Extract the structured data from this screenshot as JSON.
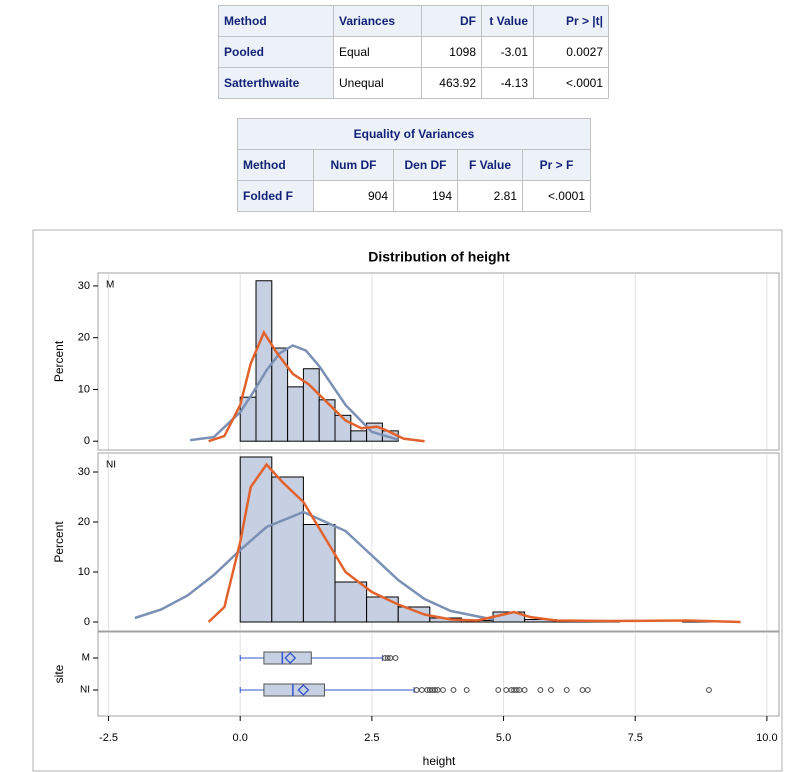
{
  "tables": [
    {
      "header": [
        "Method",
        "Variances",
        "DF",
        "t Value",
        "Pr > |t|"
      ],
      "rows": [
        [
          "Pooled",
          "Equal",
          "1098",
          "-3.01",
          "0.0027"
        ],
        [
          "Satterthwaite",
          "Unequal",
          "463.92",
          "-4.13",
          "<.0001"
        ]
      ]
    },
    {
      "title": "Equality of Variances",
      "header": [
        "Method",
        "Num DF",
        "Den DF",
        "F Value",
        "Pr > F"
      ],
      "rows": [
        [
          "Folded F",
          "904",
          "194",
          "2.81",
          "<.0001"
        ]
      ]
    }
  ],
  "chart_data": {
    "type": "histogram",
    "title": "Distribution of height",
    "xlabel": "height",
    "ylabel": "Percent",
    "xlim": [
      -2.7,
      10.23
    ],
    "xticks": [
      {
        "value": -2.5,
        "label": "-2.5"
      },
      {
        "value": 0,
        "label": "0.0"
      },
      2.5,
      {
        "value": 5,
        "label": "5.0"
      },
      7.5,
      {
        "value": 10,
        "label": "10.0"
      }
    ],
    "grid": true,
    "bar_color": "#c6d0e2",
    "panels": [
      {
        "label": "M",
        "ylim": [
          -1.7,
          32.5
        ],
        "yticks": [
          0,
          10,
          20,
          30
        ],
        "bins": [
          0,
          0.3,
          0.6,
          0.9,
          1.2,
          1.5,
          1.8,
          2.1,
          2.4,
          2.7,
          3.0
        ],
        "values": [
          8.5,
          31,
          18,
          10.5,
          14,
          8,
          5,
          2,
          3.5,
          2
        ],
        "curves": [
          {
            "color": "#7b90b5",
            "x": [
              -0.95,
              -0.5,
              0,
              0.25,
              0.5,
              0.75,
              1.0,
              1.25,
              1.5,
              2.0,
              2.5,
              3.0
            ],
            "values": [
              0.2,
              0.8,
              5.6,
              9.5,
              13.7,
              17,
              18.5,
              17.5,
              14.5,
              7,
              1.8,
              0.3
            ]
          },
          {
            "color": "#e2622e",
            "x": [
              -0.6,
              -0.3,
              0,
              0.2,
              0.45,
              0.7,
              1.0,
              1.3,
              1.6,
              2.0,
              2.3,
              2.6,
              2.8,
              3.1,
              3.5
            ],
            "values": [
              0,
              1,
              7,
              15,
              21,
              17,
              13,
              11,
              8,
              4,
              2.5,
              2.8,
              2,
              0.5,
              0
            ]
          }
        ]
      },
      {
        "label": "NI",
        "ylim": [
          -1.8,
          33.8
        ],
        "yticks": [
          0,
          10,
          20,
          30
        ],
        "bins": [
          0,
          0.6,
          1.2,
          1.8,
          2.4,
          3.0,
          3.6,
          4.2,
          4.8,
          5.4,
          6.0,
          6.6,
          7.2,
          7.8,
          8.4,
          9.0
        ],
        "values": [
          33,
          29,
          19.5,
          8,
          5,
          3,
          0.8,
          0.3,
          2,
          0.5,
          0.2,
          0.1,
          0,
          0,
          0.1
        ],
        "curves": [
          {
            "color": "#7b90b5",
            "x": [
              -2.0,
              -1.5,
              -1.0,
              -0.5,
              0,
              0.5,
              1.2,
              2.0,
              2.5,
              3.0,
              3.5,
              4.0,
              4.8
            ],
            "values": [
              0.8,
              2.5,
              5.3,
              9.4,
              14.4,
              19,
              22,
              18.2,
              13.3,
              8.4,
              4.6,
              2.2,
              0.5
            ]
          },
          {
            "color": "#e2622e",
            "x": [
              -0.6,
              -0.3,
              0,
              0.2,
              0.5,
              0.8,
              1.2,
              1.6,
              2.0,
              2.5,
              3.0,
              3.5,
              4.0,
              4.5,
              5.0,
              5.2,
              5.5,
              6.0,
              7.0,
              8.5,
              9.5
            ],
            "values": [
              0,
              3,
              16,
              27,
              31.5,
              28,
              24,
              17,
              10,
              6,
              3.5,
              1.5,
              0.5,
              0.3,
              1.5,
              2,
              1,
              0.3,
              0.2,
              0.3,
              0
            ]
          }
        ]
      }
    ],
    "box": {
      "ylabel": "site",
      "categories": [
        "M",
        "NI"
      ],
      "boxes": [
        {
          "min": 0,
          "q1": 0.45,
          "median": 0.8,
          "q3": 1.35,
          "max": 2.7,
          "mean": 0.95,
          "outliers": [
            2.75,
            2.8,
            2.85,
            2.95
          ]
        },
        {
          "min": 0,
          "q1": 0.45,
          "median": 1.0,
          "q3": 1.6,
          "max": 3.3,
          "mean": 1.2,
          "outliers": [
            3.35,
            3.45,
            3.55,
            3.6,
            3.65,
            3.7,
            3.75,
            3.85,
            4.05,
            4.3,
            4.9,
            5.05,
            5.15,
            5.2,
            5.25,
            5.3,
            5.4,
            5.7,
            5.9,
            6.2,
            6.5,
            6.6,
            8.9
          ]
        }
      ]
    }
  }
}
